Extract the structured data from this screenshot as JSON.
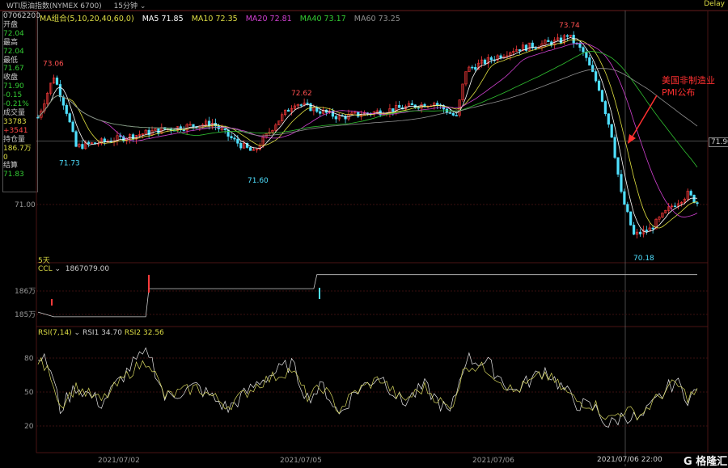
{
  "title": {
    "name": "WTI原油指数(NYMEX 6700)",
    "period": "15分钟",
    "delay": "Delay"
  },
  "info": {
    "time": "07062200",
    "rows": [
      [
        "开盘",
        "72.04"
      ],
      [
        "最高",
        "72.04"
      ],
      [
        "最低",
        "71.67"
      ],
      [
        "收盘",
        "71.90"
      ],
      [
        "",
        "-0.15"
      ],
      [
        "",
        "-0.21%"
      ],
      [
        "成交量",
        "33783"
      ],
      [
        "",
        "+3541"
      ],
      [
        "持仓量",
        "186.7万"
      ],
      [
        "",
        "0"
      ],
      [
        "结算",
        "71.83"
      ]
    ]
  },
  "ma_legend": {
    "label": "MA组合(5,10,20,40,60,0)",
    "ma5": "MA5 71.85",
    "ma10": "MA10 72.35",
    "ma20": "MA20 72.81",
    "ma40": "MA40 73.17",
    "ma60": "MA60 73.25"
  },
  "colors": {
    "up": "#ff3b3b",
    "down": "#4fe0ff",
    "ma5": "#ffffff",
    "ma10": "#e0e040",
    "ma20": "#d040d0",
    "ma40": "#30c030",
    "ma60": "#909090"
  },
  "annotation": {
    "line1": "美国非制造业",
    "line2": "PMI公布",
    "color": "#ff3030"
  },
  "span_label": "5天",
  "ccl": {
    "label": "CCL",
    "value": "1867079.00",
    "ticks": [
      "186万",
      "185万"
    ]
  },
  "rsi": {
    "label": "RSI(7,14)",
    "rsi1": "RSI1 34.70",
    "rsi2": "RSI2 32.56",
    "ticks": [
      "80",
      "50",
      "20"
    ]
  },
  "crosshair": {
    "price": "71.90",
    "time": "2021/07/06 22:00"
  },
  "watermark": "格隆汇",
  "chart_data": {
    "type": "candlestick",
    "price_axis_labels": [
      "71.90",
      "71.00"
    ],
    "x_tick_labels": [
      "2021/07/02",
      "2021/07/05",
      "2021/07/06"
    ],
    "price_annotations": [
      {
        "text": "73.06",
        "type": "high"
      },
      {
        "text": "71.73",
        "type": "low"
      },
      {
        "text": "71.60",
        "type": "low"
      },
      {
        "text": "72.62",
        "type": "high"
      },
      {
        "text": "73.74",
        "type": "high"
      },
      {
        "text": "70.18",
        "type": "low"
      }
    ],
    "close_anchors_by_bar": [
      [
        0,
        72.3
      ],
      [
        5,
        73.0
      ],
      [
        9,
        72.4
      ],
      [
        12,
        71.8
      ],
      [
        22,
        71.9
      ],
      [
        40,
        72.1
      ],
      [
        55,
        72.2
      ],
      [
        62,
        71.9
      ],
      [
        68,
        71.7
      ],
      [
        75,
        72.2
      ],
      [
        81,
        72.55
      ],
      [
        95,
        72.3
      ],
      [
        108,
        72.4
      ],
      [
        125,
        72.55
      ],
      [
        132,
        72.3
      ],
      [
        135,
        73.1
      ],
      [
        150,
        73.45
      ],
      [
        165,
        73.6
      ],
      [
        167,
        73.7
      ],
      [
        172,
        73.4
      ],
      [
        177,
        72.8
      ],
      [
        181,
        72.0
      ],
      [
        184,
        71.0
      ],
      [
        188,
        70.3
      ],
      [
        193,
        70.4
      ],
      [
        200,
        70.8
      ],
      [
        205,
        71.0
      ],
      [
        208,
        70.85
      ]
    ],
    "ccl_steps_wan": [
      [
        0,
        185.1
      ],
      [
        5,
        184.9
      ],
      [
        34,
        184.9
      ],
      [
        35,
        186.1
      ],
      [
        87,
        186.1
      ],
      [
        88,
        186.7
      ],
      [
        208,
        186.7
      ]
    ],
    "rsi_anchors_by_bar": [
      [
        0,
        85
      ],
      [
        4,
        70
      ],
      [
        7,
        35
      ],
      [
        12,
        55
      ],
      [
        20,
        40
      ],
      [
        30,
        75
      ],
      [
        35,
        85
      ],
      [
        40,
        45
      ],
      [
        50,
        55
      ],
      [
        60,
        35
      ],
      [
        70,
        60
      ],
      [
        80,
        75
      ],
      [
        85,
        45
      ],
      [
        90,
        55
      ],
      [
        95,
        30
      ],
      [
        100,
        50
      ],
      [
        108,
        65
      ],
      [
        115,
        40
      ],
      [
        122,
        55
      ],
      [
        130,
        30
      ],
      [
        135,
        80
      ],
      [
        142,
        75
      ],
      [
        150,
        50
      ],
      [
        160,
        70
      ],
      [
        165,
        55
      ],
      [
        170,
        40
      ],
      [
        176,
        35
      ],
      [
        180,
        20
      ],
      [
        185,
        30
      ],
      [
        190,
        25
      ],
      [
        196,
        45
      ],
      [
        201,
        60
      ],
      [
        205,
        45
      ],
      [
        208,
        50
      ]
    ],
    "rsi_range": [
      0,
      100
    ]
  }
}
